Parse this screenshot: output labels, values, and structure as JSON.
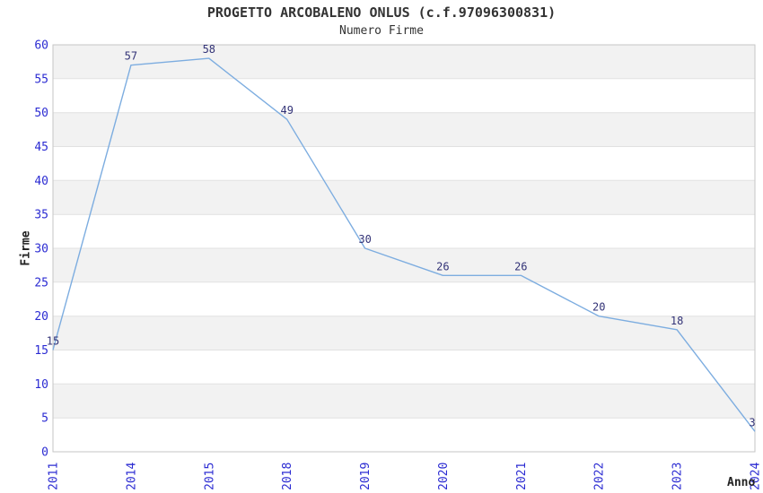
{
  "chart": {
    "title": "PROGETTO ARCOBALENO ONLUS (c.f.97096300831)",
    "subtitle": "Numero Firme",
    "xlabel": "Anno",
    "ylabel": "Firme"
  },
  "chart_data": {
    "type": "line",
    "title": "PROGETTO ARCOBALENO ONLUS (c.f.97096300831)",
    "subtitle": "Numero Firme",
    "xlabel": "Anno",
    "ylabel": "Firme",
    "categories": [
      "2011",
      "2014",
      "2015",
      "2018",
      "2019",
      "2020",
      "2021",
      "2022",
      "2023",
      "2024"
    ],
    "values": [
      15,
      57,
      58,
      49,
      30,
      26,
      26,
      20,
      18,
      3
    ],
    "ylim": [
      0,
      60
    ],
    "ytick_step": 5,
    "yticks": [
      0,
      5,
      10,
      15,
      20,
      25,
      30,
      35,
      40,
      45,
      50,
      55,
      60
    ],
    "grid": "horizontal-bands-alternating",
    "legend": false,
    "point_labels_visible": true
  },
  "colors": {
    "line": "#7dade0",
    "tick_label": "#2b2bd2",
    "point_label": "#333377",
    "band_gray": "#f2f2f2",
    "band_white": "#ffffff",
    "gridline": "#e1e1e1",
    "plot_border": "#c6c6c6",
    "title_text": "#333333"
  }
}
